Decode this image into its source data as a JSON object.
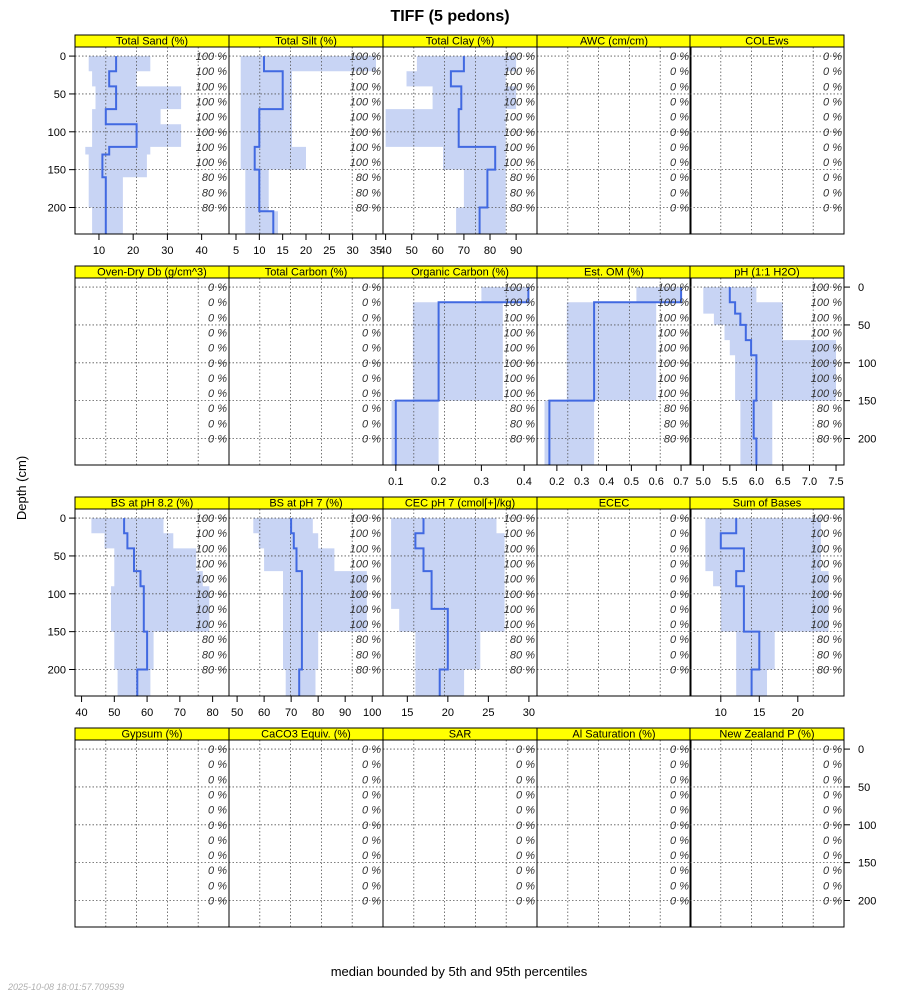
{
  "title": "TIFF (5 pedons)",
  "ylabel": "Depth (cm)",
  "caption": "median bounded by 5th and 95th percentiles",
  "timestamp": "2025-10-08 18:01:57.709539",
  "colors": {
    "strip": "#ffff00",
    "band": "#c8d4f4",
    "median": "#4169e1",
    "grid": "#555555"
  },
  "chart_data": {
    "type": "line",
    "y_axis": {
      "range": [
        235,
        -12
      ],
      "ticks": [
        0,
        50,
        100,
        150,
        200
      ],
      "reversed": true
    },
    "pct_depths": [
      0,
      20,
      40,
      60,
      80,
      100,
      120,
      140,
      160,
      180,
      200
    ],
    "panels": [
      {
        "name": "Total Sand (%)",
        "xlim": [
          3,
          48
        ],
        "ticks": [
          10,
          20,
          30,
          40
        ],
        "pct": [
          "100 %",
          "100 %",
          "100 %",
          "100 %",
          "100 %",
          "100 %",
          "100 %",
          "100 %",
          "80 %",
          "80 %",
          "80 %"
        ],
        "depth": [
          0,
          20,
          40,
          70,
          90,
          120,
          130,
          160,
          200,
          235
        ],
        "median": [
          15,
          13,
          15,
          12,
          21,
          13,
          11,
          12,
          12,
          12
        ],
        "p5": [
          7,
          8,
          9,
          8,
          8,
          6,
          7,
          7,
          8,
          8
        ],
        "p95": [
          25,
          21,
          34,
          28,
          34,
          25,
          24,
          17,
          17,
          17
        ]
      },
      {
        "name": "Total Silt (%)",
        "xlim": [
          3.5,
          36.5
        ],
        "ticks": [
          5,
          10,
          15,
          20,
          25,
          30,
          35
        ],
        "pct": [
          "100 %",
          "100 %",
          "100 %",
          "100 %",
          "100 %",
          "100 %",
          "100 %",
          "100 %",
          "80 %",
          "80 %",
          "80 %"
        ],
        "depth": [
          0,
          20,
          70,
          120,
          150,
          205,
          235
        ],
        "median": [
          11,
          15,
          10,
          9,
          10,
          13,
          13
        ],
        "p5": [
          6,
          6,
          6,
          6,
          7,
          7,
          7
        ],
        "p95": [
          35,
          17,
          17,
          20,
          12,
          14,
          14
        ]
      },
      {
        "name": "Total Clay (%)",
        "xlim": [
          39,
          98
        ],
        "ticks": [
          40,
          50,
          60,
          70,
          80,
          90
        ],
        "pct": [
          "100 %",
          "100 %",
          "100 %",
          "100 %",
          "100 %",
          "100 %",
          "100 %",
          "100 %",
          "80 %",
          "80 %",
          "80 %"
        ],
        "depth": [
          0,
          20,
          40,
          70,
          120,
          150,
          200,
          235
        ],
        "median": [
          70,
          65,
          69,
          68,
          82,
          79,
          76,
          76
        ],
        "p5": [
          52,
          48,
          58,
          40,
          62,
          70,
          67,
          67
        ],
        "p95": [
          90,
          86,
          90,
          86,
          86,
          86,
          86,
          86
        ]
      },
      {
        "name": "AWC (cm/cm)",
        "xlim": null,
        "ticks": [],
        "pct": [
          "0 %",
          "0 %",
          "0 %",
          "0 %",
          "0 %",
          "0 %",
          "0 %",
          "0 %",
          "0 %",
          "0 %",
          "0 %"
        ]
      },
      {
        "name": "COLEws",
        "xlim": null,
        "ticks": [],
        "pct": [
          "0 %",
          "0 %",
          "0 %",
          "0 %",
          "0 %",
          "0 %",
          "0 %",
          "0 %",
          "0 %",
          "0 %",
          "0 %"
        ]
      },
      {
        "name": "Oven-Dry Db (g/cm^3)",
        "xlim": null,
        "ticks": [],
        "pct": [
          "0 %",
          "0 %",
          "0 %",
          "0 %",
          "0 %",
          "0 %",
          "0 %",
          "0 %",
          "0 %",
          "0 %",
          "0 %"
        ]
      },
      {
        "name": "Total Carbon (%)",
        "xlim": null,
        "ticks": [],
        "pct": [
          "0 %",
          "0 %",
          "0 %",
          "0 %",
          "0 %",
          "0 %",
          "0 %",
          "0 %",
          "0 %",
          "0 %",
          "0 %"
        ]
      },
      {
        "name": "Organic Carbon (%)",
        "xlim": [
          0.07,
          0.43
        ],
        "ticks": [
          0.1,
          0.2,
          0.3,
          0.4
        ],
        "pct": [
          "100 %",
          "100 %",
          "100 %",
          "100 %",
          "100 %",
          "100 %",
          "100 %",
          "100 %",
          "80 %",
          "80 %",
          "80 %"
        ],
        "depth": [
          0,
          20,
          150,
          235
        ],
        "median": [
          0.41,
          0.2,
          0.1,
          0.1
        ],
        "p5": [
          0.3,
          0.14,
          0.09,
          0.09
        ],
        "p95": [
          0.41,
          0.35,
          0.2,
          0.2
        ]
      },
      {
        "name": "Est. OM (%)",
        "xlim": [
          0.12,
          0.74
        ],
        "ticks": [
          0.2,
          0.3,
          0.4,
          0.5,
          0.6,
          0.7
        ],
        "pct": [
          "100 %",
          "100 %",
          "100 %",
          "100 %",
          "100 %",
          "100 %",
          "100 %",
          "100 %",
          "80 %",
          "80 %",
          "80 %"
        ],
        "depth": [
          0,
          20,
          150,
          235
        ],
        "median": [
          0.7,
          0.35,
          0.17,
          0.17
        ],
        "p5": [
          0.52,
          0.24,
          0.15,
          0.15
        ],
        "p95": [
          0.7,
          0.6,
          0.35,
          0.35
        ]
      },
      {
        "name": "pH (1:1 H2O)",
        "xlim": [
          4.75,
          7.65
        ],
        "ticks": [
          5.0,
          5.5,
          6.0,
          6.5,
          7.0,
          7.5
        ],
        "pct": [
          "100 %",
          "100 %",
          "100 %",
          "100 %",
          "100 %",
          "100 %",
          "100 %",
          "100 %",
          "80 %",
          "80 %",
          "80 %"
        ],
        "depth": [
          0,
          20,
          35,
          50,
          70,
          90,
          150,
          200,
          235
        ],
        "median": [
          5.5,
          5.6,
          5.7,
          5.8,
          5.9,
          6.0,
          5.95,
          6.0,
          6.0
        ],
        "p5": [
          5.0,
          5.0,
          5.2,
          5.4,
          5.5,
          5.6,
          5.7,
          5.7,
          5.7
        ],
        "p95": [
          6.0,
          6.5,
          6.5,
          6.5,
          7.5,
          7.5,
          6.3,
          6.3,
          6.3
        ]
      },
      {
        "name": "BS at pH 8.2 (%)",
        "xlim": [
          38,
          85
        ],
        "ticks": [
          40,
          50,
          60,
          70,
          80
        ],
        "pct": [
          "100 %",
          "100 %",
          "100 %",
          "100 %",
          "100 %",
          "100 %",
          "100 %",
          "100 %",
          "80 %",
          "80 %",
          "80 %"
        ],
        "depth": [
          0,
          20,
          40,
          70,
          90,
          150,
          200,
          235
        ],
        "median": [
          53,
          54,
          56,
          58,
          59,
          60,
          57,
          56
        ],
        "p5": [
          43,
          47,
          50,
          50,
          49,
          50,
          51,
          51
        ],
        "p95": [
          65,
          68,
          75,
          77,
          79,
          62,
          61,
          61
        ]
      },
      {
        "name": "BS at pH 7 (%)",
        "xlim": [
          47,
          104
        ],
        "ticks": [
          50,
          60,
          70,
          80,
          90,
          100
        ],
        "pct": [
          "100 %",
          "100 %",
          "100 %",
          "100 %",
          "100 %",
          "100 %",
          "100 %",
          "100 %",
          "80 %",
          "80 %",
          "80 %"
        ],
        "depth": [
          0,
          20,
          40,
          70,
          150,
          200,
          235
        ],
        "median": [
          70,
          71,
          72,
          74,
          74,
          73,
          73
        ],
        "p5": [
          56,
          58,
          60,
          67,
          67,
          68,
          68
        ],
        "p95": [
          78,
          80,
          86,
          98,
          80,
          79,
          79
        ]
      },
      {
        "name": "CEC pH 7 (cmol[+]/kg)",
        "xlim": [
          12,
          31
        ],
        "ticks": [
          15,
          20,
          25,
          30
        ],
        "pct": [
          "100 %",
          "100 %",
          "100 %",
          "100 %",
          "100 %",
          "100 %",
          "100 %",
          "100 %",
          "80 %",
          "80 %",
          "80 %"
        ],
        "depth": [
          0,
          20,
          40,
          70,
          90,
          120,
          150,
          200,
          235
        ],
        "median": [
          17,
          16,
          17,
          18,
          18,
          20,
          20,
          19,
          19
        ],
        "p5": [
          13,
          13,
          13,
          13,
          13,
          14,
          16,
          16,
          16
        ],
        "p95": [
          26,
          27,
          27,
          27,
          27,
          27,
          24,
          22,
          22
        ]
      },
      {
        "name": "ECEC",
        "xlim": null,
        "ticks": [],
        "pct": [
          "0 %",
          "0 %",
          "0 %",
          "0 %",
          "0 %",
          "0 %",
          "0 %",
          "0 %",
          "0 %",
          "0 %",
          "0 %"
        ]
      },
      {
        "name": "Sum of Bases",
        "xlim": [
          6,
          26
        ],
        "ticks": [
          10,
          15,
          20
        ],
        "pct": [
          "100 %",
          "100 %",
          "100 %",
          "100 %",
          "100 %",
          "100 %",
          "100 %",
          "100 %",
          "80 %",
          "80 %",
          "80 %"
        ],
        "depth": [
          0,
          20,
          40,
          70,
          90,
          150,
          200,
          235
        ],
        "median": [
          12,
          10,
          13,
          12,
          13,
          15,
          14,
          14
        ],
        "p5": [
          8,
          8,
          8,
          9,
          10,
          12,
          12,
          12
        ],
        "p95": [
          23,
          23,
          23,
          24,
          24,
          17,
          16,
          16
        ]
      },
      {
        "name": "Gypsum (%)",
        "xlim": null,
        "ticks": [],
        "pct": [
          "0 %",
          "0 %",
          "0 %",
          "0 %",
          "0 %",
          "0 %",
          "0 %",
          "0 %",
          "0 %",
          "0 %",
          "0 %"
        ]
      },
      {
        "name": "CaCO3 Equiv. (%)",
        "xlim": null,
        "ticks": [],
        "pct": [
          "0 %",
          "0 %",
          "0 %",
          "0 %",
          "0 %",
          "0 %",
          "0 %",
          "0 %",
          "0 %",
          "0 %",
          "0 %"
        ]
      },
      {
        "name": "SAR",
        "xlim": null,
        "ticks": [],
        "pct": [
          "0 %",
          "0 %",
          "0 %",
          "0 %",
          "0 %",
          "0 %",
          "0 %",
          "0 %",
          "0 %",
          "0 %",
          "0 %"
        ]
      },
      {
        "name": "Al Saturation (%)",
        "xlim": null,
        "ticks": [],
        "pct": [
          "0 %",
          "0 %",
          "0 %",
          "0 %",
          "0 %",
          "0 %",
          "0 %",
          "0 %",
          "0 %",
          "0 %",
          "0 %"
        ]
      },
      {
        "name": "New Zealand P (%)",
        "xlim": null,
        "ticks": [],
        "pct": [
          "0 %",
          "0 %",
          "0 %",
          "0 %",
          "0 %",
          "0 %",
          "0 %",
          "0 %",
          "0 %",
          "0 %",
          "0 %"
        ]
      }
    ]
  }
}
